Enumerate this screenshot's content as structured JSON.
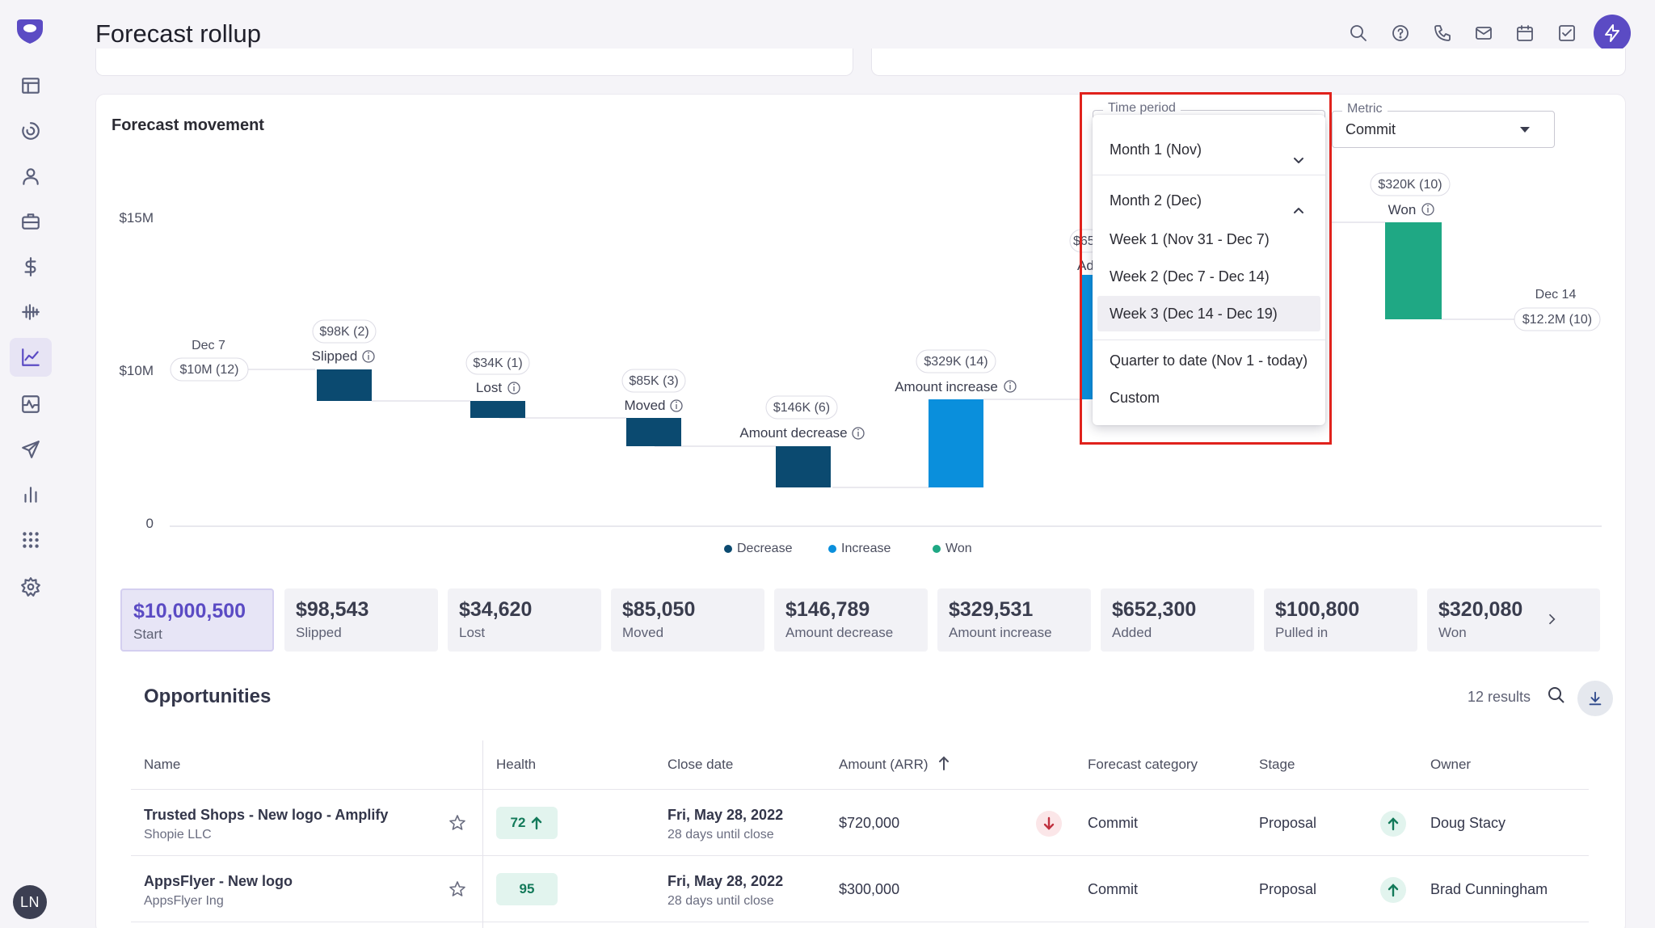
{
  "header": {
    "title": "Forecast rollup",
    "icons": [
      "search-icon",
      "help-icon",
      "phone-icon",
      "mail-icon",
      "calendar-icon",
      "tasks-icon",
      "bolt-icon"
    ]
  },
  "sidebar": {
    "items": [
      "table-icon",
      "spinner-icon",
      "person-icon",
      "briefcase-icon",
      "dollar-icon",
      "waveform-icon",
      "trend-chart-icon",
      "activity-icon",
      "send-icon",
      "bar-chart-icon",
      "apps-grid-icon",
      "gear-icon"
    ],
    "active": "trend-chart-icon",
    "avatar_initials": "LN"
  },
  "section": {
    "title": "Forecast movement"
  },
  "controls": {
    "time_period": {
      "label": "Time period",
      "items": [
        "Month 1 (Nov)",
        "Month 2 (Dec)",
        "Week 1 (Nov 31 - Dec 7)",
        "Week 2 (Dec 7 - Dec 14)",
        "Week 3 (Dec 14 - Dec 19)",
        "Quarter to date (Nov 1 - today)",
        "Custom"
      ],
      "selected": "Week 3 (Dec 14 - Dec 19)"
    },
    "metric": {
      "label": "Metric",
      "value": "Commit"
    }
  },
  "chart_data": {
    "type": "bar",
    "subtype": "waterfall",
    "y_ticks": [
      "$15M",
      "$10M",
      "0"
    ],
    "start": {
      "label": "Dec 7",
      "value_label": "$10M (12)"
    },
    "end": {
      "label": "Dec 14",
      "value_label": "$12.2M (10)"
    },
    "bars": [
      {
        "category": "Slipped",
        "value_label": "$98K (2)",
        "kind": "Decrease"
      },
      {
        "category": "Lost",
        "value_label": "$34K (1)",
        "kind": "Decrease"
      },
      {
        "category": "Moved",
        "value_label": "$85K (3)",
        "kind": "Decrease"
      },
      {
        "category": "Amount decrease",
        "value_label": "$146K (6)",
        "kind": "Decrease"
      },
      {
        "category": "Amount increase",
        "value_label": "$329K (14)",
        "kind": "Increase"
      },
      {
        "category": "Won",
        "value_label": "$320K (10)",
        "kind": "Won"
      }
    ],
    "partial_labels": [
      "$65",
      "Ad"
    ],
    "legend": [
      {
        "name": "Decrease",
        "color": "#0b4a70"
      },
      {
        "name": "Increase",
        "color": "#0a8fdc"
      },
      {
        "name": "Won",
        "color": "#1fa884"
      }
    ]
  },
  "summary": [
    {
      "value": "$10,000,500",
      "label": "Start"
    },
    {
      "value": "$98,543",
      "label": "Slipped"
    },
    {
      "value": "$34,620",
      "label": "Lost"
    },
    {
      "value": "$85,050",
      "label": "Moved"
    },
    {
      "value": "$146,789",
      "label": "Amount decrease"
    },
    {
      "value": "$329,531",
      "label": "Amount increase"
    },
    {
      "value": "$652,300",
      "label": "Added"
    },
    {
      "value": "$100,800",
      "label": "Pulled in"
    },
    {
      "value": "$320,080",
      "label": "Won"
    }
  ],
  "opportunities": {
    "title": "Opportunities",
    "results": "12 results",
    "columns": [
      "Name",
      "Health",
      "Close date",
      "Amount (ARR)",
      "Forecast category",
      "Stage",
      "Owner"
    ],
    "rows": [
      {
        "name": "Trusted Shops - New logo - Amplify",
        "company": "Shopie LLC",
        "health": "72",
        "close_date": "Fri, May 28, 2022",
        "days": "28 days until close",
        "amount": "$720,000",
        "category": "Commit",
        "stage": "Proposal",
        "owner": "Doug Stacy"
      },
      {
        "name": "AppsFlyer - New logo",
        "company": "AppsFlyer Ing",
        "health": "95",
        "close_date": "Fri, May 28, 2022",
        "days": "28 days until close",
        "amount": "$300,000",
        "category": "Commit",
        "stage": "Proposal",
        "owner": "Brad Cunningham"
      }
    ]
  },
  "colors": {
    "accent": "#5b4bc4",
    "decrease": "#0b4a70",
    "increase": "#0a8fdc",
    "won": "#1fa884",
    "highlight": "#e0221c"
  }
}
